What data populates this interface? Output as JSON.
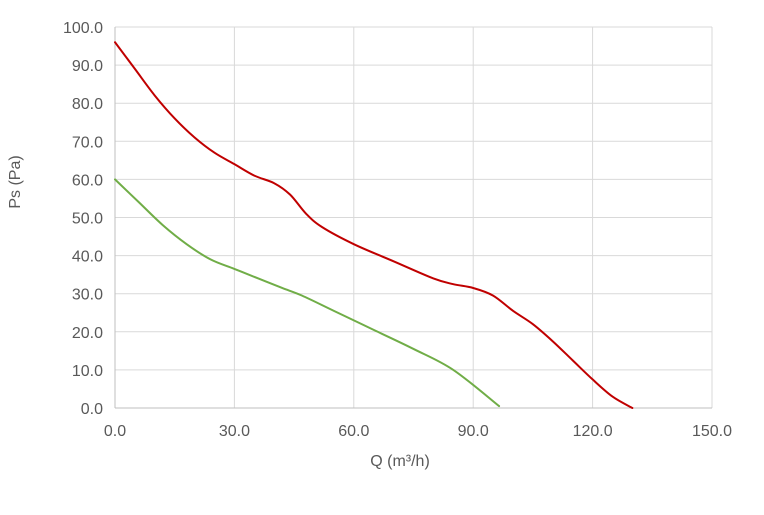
{
  "chart_data": {
    "type": "line",
    "xlabel": "Q (m³/h)",
    "ylabel": "Ps (Pa)",
    "xlim": [
      0,
      150
    ],
    "ylim": [
      0,
      100
    ],
    "x_ticks": [
      "0.0",
      "30.0",
      "60.0",
      "90.0",
      "120.0",
      "150.0"
    ],
    "y_ticks": [
      "0.0",
      "10.0",
      "20.0",
      "30.0",
      "40.0",
      "50.0",
      "60.0",
      "70.0",
      "80.0",
      "90.0",
      "100.0"
    ],
    "grid": true,
    "legend": "none",
    "series": [
      {
        "color": "#c00000",
        "points": [
          [
            0,
            96
          ],
          [
            5,
            89
          ],
          [
            10,
            82
          ],
          [
            15,
            76
          ],
          [
            20,
            71
          ],
          [
            25,
            67
          ],
          [
            30,
            64
          ],
          [
            35,
            61
          ],
          [
            40,
            59
          ],
          [
            44,
            56
          ],
          [
            48,
            51
          ],
          [
            52,
            47.5
          ],
          [
            60,
            43
          ],
          [
            70,
            38.5
          ],
          [
            80,
            34
          ],
          [
            85,
            32.5
          ],
          [
            90,
            31.5
          ],
          [
            95,
            29.5
          ],
          [
            100,
            25.5
          ],
          [
            105,
            22
          ],
          [
            110,
            17.5
          ],
          [
            115,
            12.5
          ],
          [
            120,
            7.5
          ],
          [
            125,
            3
          ],
          [
            130,
            0
          ]
        ]
      },
      {
        "color": "#70ad47",
        "points": [
          [
            0,
            60
          ],
          [
            6,
            54
          ],
          [
            12,
            48
          ],
          [
            18,
            43
          ],
          [
            24,
            39
          ],
          [
            30,
            36.5
          ],
          [
            36,
            34
          ],
          [
            42,
            31.5
          ],
          [
            47,
            29.5
          ],
          [
            55,
            25.5
          ],
          [
            65,
            20.5
          ],
          [
            75,
            15.5
          ],
          [
            85,
            10
          ],
          [
            96.5,
            0.5
          ]
        ]
      }
    ]
  }
}
